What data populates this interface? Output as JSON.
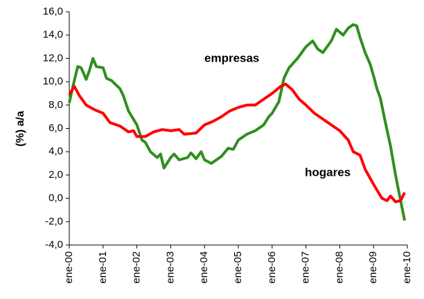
{
  "chart_data": {
    "type": "line",
    "y_label": "(%) a/a",
    "xlim": [
      2000,
      2010
    ],
    "xticks": [
      {
        "value": 2000,
        "label": "ene-00"
      },
      {
        "value": 2001,
        "label": "ene-01"
      },
      {
        "value": 2002,
        "label": "ene-02"
      },
      {
        "value": 2003,
        "label": "ene-03"
      },
      {
        "value": 2004,
        "label": "ene-04"
      },
      {
        "value": 2005,
        "label": "ene-05"
      },
      {
        "value": 2006,
        "label": "ene-06"
      },
      {
        "value": 2007,
        "label": "ene-07"
      },
      {
        "value": 2008,
        "label": "ene-08"
      },
      {
        "value": 2009,
        "label": "ene-09"
      },
      {
        "value": 2010,
        "label": "ene-10"
      }
    ],
    "ylim": [
      -4,
      16
    ],
    "yticks": [
      {
        "value": -4,
        "label": "-4,0"
      },
      {
        "value": -2,
        "label": "-2,0"
      },
      {
        "value": 0,
        "label": "0,0"
      },
      {
        "value": 2,
        "label": "2,0"
      },
      {
        "value": 4,
        "label": "4,0"
      },
      {
        "value": 6,
        "label": "6,0"
      },
      {
        "value": 8,
        "label": "8,0"
      },
      {
        "value": 10,
        "label": "10,0"
      },
      {
        "value": 12,
        "label": "12,0"
      },
      {
        "value": 14,
        "label": "14,0"
      },
      {
        "value": 16,
        "label": "16,0"
      }
    ],
    "grid": false,
    "series": [
      {
        "name": "empresas",
        "color": "#2f8f1f",
        "x": [
          2000.0,
          2000.1,
          2000.25,
          2000.35,
          2000.5,
          2000.6,
          2000.7,
          2000.8,
          2001.0,
          2001.1,
          2001.25,
          2001.5,
          2001.6,
          2001.75,
          2002.0,
          2002.15,
          2002.25,
          2002.4,
          2002.6,
          2002.7,
          2002.8,
          2003.0,
          2003.1,
          2003.25,
          2003.5,
          2003.6,
          2003.75,
          2003.9,
          2004.0,
          2004.2,
          2004.5,
          2004.7,
          2004.85,
          2005.0,
          2005.25,
          2005.5,
          2005.75,
          2005.9,
          2006.0,
          2006.2,
          2006.35,
          2006.5,
          2006.75,
          2007.0,
          2007.2,
          2007.35,
          2007.5,
          2007.75,
          2007.9,
          2008.1,
          2008.25,
          2008.4,
          2008.5,
          2008.6,
          2008.75,
          2008.9,
          2009.0,
          2009.1,
          2009.2,
          2009.35,
          2009.5,
          2009.65,
          2009.8,
          2009.92
        ],
        "values": [
          8.2,
          9.5,
          11.3,
          11.2,
          10.2,
          11.0,
          12.0,
          11.3,
          11.2,
          10.3,
          10.1,
          9.4,
          8.8,
          7.5,
          6.3,
          5.0,
          4.8,
          4.0,
          3.5,
          3.8,
          2.6,
          3.5,
          3.8,
          3.3,
          3.5,
          3.9,
          3.4,
          4.0,
          3.3,
          3.0,
          3.6,
          4.3,
          4.2,
          5.0,
          5.5,
          5.8,
          6.3,
          7.0,
          7.3,
          8.3,
          10.3,
          11.2,
          12.0,
          13.0,
          13.5,
          12.8,
          12.5,
          13.5,
          14.5,
          14.0,
          14.6,
          14.9,
          14.8,
          13.8,
          12.5,
          11.5,
          10.5,
          9.4,
          8.6,
          6.5,
          4.5,
          2.0,
          -0.2,
          -1.9
        ]
      },
      {
        "name": "hogares",
        "color": "#ff0000",
        "x": [
          2000.0,
          2000.15,
          2000.3,
          2000.5,
          2000.75,
          2001.0,
          2001.2,
          2001.5,
          2001.75,
          2001.9,
          2002.0,
          2002.25,
          2002.5,
          2002.75,
          2003.0,
          2003.25,
          2003.4,
          2003.75,
          2004.0,
          2004.25,
          2004.5,
          2004.75,
          2005.0,
          2005.25,
          2005.5,
          2005.75,
          2006.0,
          2006.25,
          2006.4,
          2006.6,
          2006.8,
          2007.0,
          2007.25,
          2007.5,
          2007.75,
          2008.0,
          2008.25,
          2008.4,
          2008.6,
          2008.75,
          2009.0,
          2009.25,
          2009.4,
          2009.5,
          2009.65,
          2009.8,
          2009.92
        ],
        "values": [
          8.9,
          9.6,
          8.8,
          8.0,
          7.6,
          7.3,
          6.5,
          6.2,
          5.7,
          5.8,
          5.3,
          5.3,
          5.7,
          5.9,
          5.8,
          5.9,
          5.5,
          5.6,
          6.3,
          6.6,
          7.0,
          7.5,
          7.8,
          8.0,
          8.0,
          8.5,
          9.0,
          9.6,
          9.8,
          9.3,
          8.5,
          8.0,
          7.3,
          6.8,
          6.3,
          5.8,
          5.0,
          4.0,
          3.7,
          2.5,
          1.2,
          0.0,
          -0.2,
          0.2,
          -0.3,
          -0.2,
          0.5
        ]
      }
    ]
  }
}
